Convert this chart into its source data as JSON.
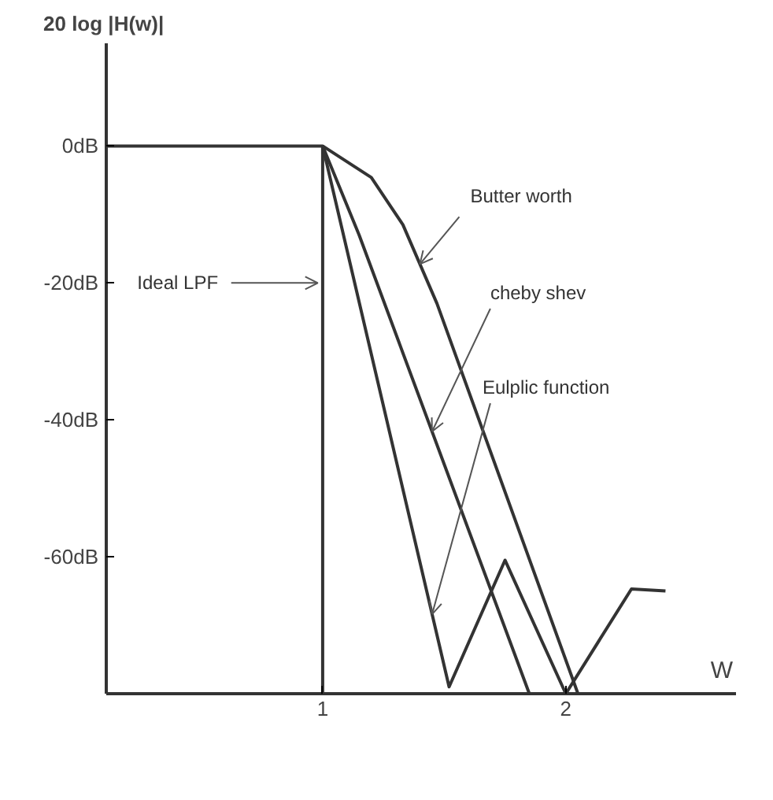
{
  "chart_data": {
    "type": "line",
    "xlabel": "W",
    "ylabel": "20 log |H(w)|",
    "xlim": [
      0.11,
      2.7
    ],
    "ylim": [
      -80,
      15
    ],
    "xticks": [
      1,
      2
    ],
    "yticks": [
      {
        "value": 0,
        "label": "0dB"
      },
      {
        "value": -20,
        "label": "-20dB"
      },
      {
        "value": -40,
        "label": "-40dB"
      },
      {
        "value": -60,
        "label": "-60dB"
      }
    ],
    "grid": false,
    "marker": "none",
    "line_style": "solid",
    "series": [
      {
        "color": "#333333",
        "x": [
          0.11,
          1,
          1
        ],
        "values": [
          0,
          0,
          -80
        ]
      },
      {
        "color": "#333333",
        "x": [
          1,
          1.2,
          1.33,
          1.47,
          2.05
        ],
        "values": [
          0,
          -4.6,
          -11.5,
          -23,
          -80
        ]
      },
      {
        "color": "#333333",
        "x": [
          1,
          1.15,
          1.85
        ],
        "values": [
          0,
          -13,
          -80
        ]
      },
      {
        "color": "#333333",
        "x": [
          1,
          1.52,
          1.75,
          2.0,
          2.27,
          2.41
        ],
        "values": [
          0,
          -79,
          -60.5,
          -80,
          -64.7,
          -65
        ]
      }
    ],
    "annotations": [
      {
        "text": "Ideal  LPF",
        "x": 0.98,
        "y": -20
      },
      {
        "text": "Butter worth",
        "x": 1.4,
        "y": -17.25
      },
      {
        "text": "cheby shev",
        "x": 1.45,
        "y": -41.7
      },
      {
        "text": "Eulplic function",
        "x": 1.45,
        "y": -68.4
      }
    ]
  }
}
